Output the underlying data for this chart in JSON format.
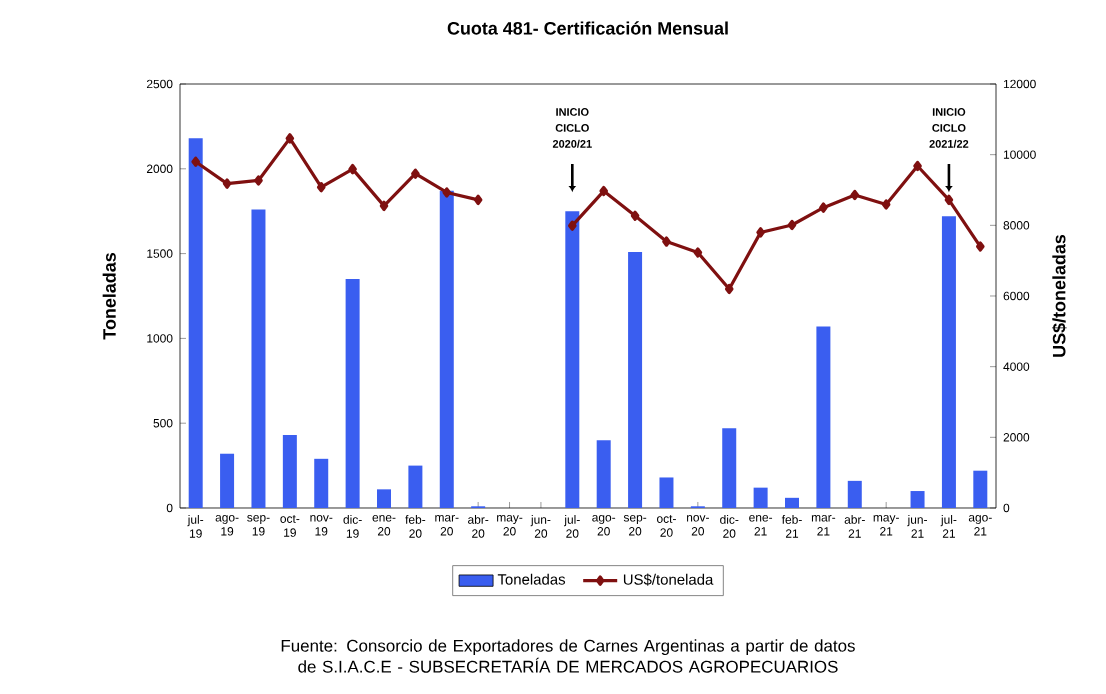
{
  "chart_data": {
    "type": "bar",
    "title": "Cuota 481-  Certificación Mensual",
    "ylabel": "Toneladas",
    "y2label": "US$/toneladas",
    "categories": [
      "jul-19",
      "ago-19",
      "sep-19",
      "oct-19",
      "nov-19",
      "dic-19",
      "ene-20",
      "feb-20",
      "mar-20",
      "abr-20",
      "may-20",
      "jun-20",
      "jul-20",
      "ago-20",
      "sep-20",
      "oct-20",
      "nov-20",
      "dic-20",
      "ene-21",
      "feb-21",
      "mar-21",
      "abr-21",
      "may-21",
      "jun-21",
      "jul-21",
      "ago-21"
    ],
    "series": [
      {
        "name": "Toneladas",
        "axis": "y",
        "color": "#3a5ef0",
        "values": [
          2180,
          320,
          1760,
          430,
          290,
          1350,
          110,
          250,
          1870,
          10,
          null,
          null,
          1750,
          400,
          1510,
          180,
          10,
          470,
          120,
          60,
          1070,
          160,
          null,
          100,
          1720,
          220
        ]
      },
      {
        "name": "US$/tonelada",
        "type": "line",
        "axis": "y2",
        "color": "#7f1010",
        "marker": "diamond",
        "values": [
          9800,
          9180,
          9270,
          10460,
          9080,
          9590,
          8550,
          9460,
          8930,
          8720,
          null,
          null,
          7990,
          8970,
          8270,
          7540,
          7230,
          6200,
          7800,
          8010,
          8500,
          8860,
          8590,
          9680,
          8720,
          7400
        ]
      }
    ],
    "ylim": [
      0,
      2500
    ],
    "yticks": [
      0,
      500,
      1000,
      1500,
      2000,
      2500
    ],
    "y2lim": [
      0,
      12000
    ],
    "y2ticks": [
      0,
      2000,
      4000,
      6000,
      8000,
      10000,
      12000
    ],
    "grid": false,
    "legend": "bottom",
    "annotations": [
      "INICIO CICLO 2020/21",
      "INICIO CICLO 2021/22",
      "Fuente: Consorcio de Exportadores de Carnes Argentinas a partir de datos de S.I.A.C.E - SUBSECRETARÍA  DE MERCADOS AGROPECUARIOS"
    ]
  }
}
